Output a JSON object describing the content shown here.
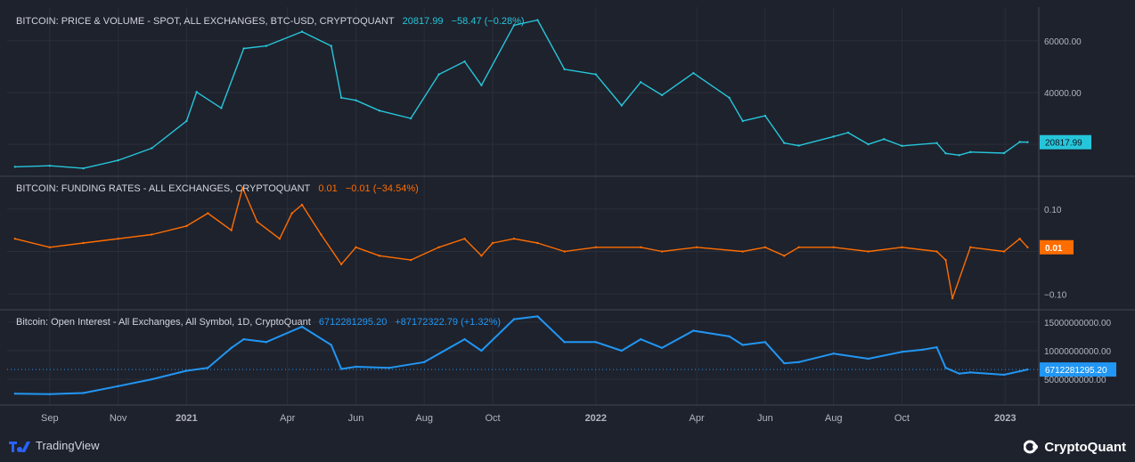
{
  "panels": [
    {
      "title": "BITCOIN: PRICE & VOLUME - SPOT, ALL EXCHANGES, BTC-USD, CRYPTOQUANT",
      "value": "20817.99",
      "change": "−58.47 (−0.28%)",
      "color": "#26c6da"
    },
    {
      "title": "BITCOIN: FUNDING RATES - ALL EXCHANGES, CRYPTOQUANT",
      "value": "0.01",
      "change": "−0.01 (−34.54%)",
      "color": "#ff6d00"
    },
    {
      "title": "Bitcoin: Open Interest - All Exchanges, All Symbol, 1D, CryptoQuant",
      "value": "6712281295.20",
      "change": "+87172322.79 (+1.32%)",
      "color": "#2196f3"
    }
  ],
  "footer": {
    "left_label": "TradingView",
    "right_label": "CryptoQuant"
  },
  "chart_data": [
    {
      "type": "line",
      "series": [
        {
          "name": "BITCOIN: PRICE & VOLUME - SPOT, ALL EXCHANGES, BTC-USD, CRYPTOQUANT",
          "color": "#26c6da"
        }
      ],
      "x": [
        "2020-08-01",
        "2020-09-01",
        "2020-10-01",
        "2020-11-01",
        "2020-12-01",
        "2021-01-01",
        "2021-01-10",
        "2021-02-01",
        "2021-02-21",
        "2021-03-13",
        "2021-04-14",
        "2021-05-10",
        "2021-05-19",
        "2021-06-01",
        "2021-06-22",
        "2021-07-20",
        "2021-08-14",
        "2021-09-06",
        "2021-09-21",
        "2021-10-20",
        "2021-11-10",
        "2021-12-04",
        "2022-01-01",
        "2022-01-24",
        "2022-02-10",
        "2022-03-01",
        "2022-03-29",
        "2022-04-30",
        "2022-05-12",
        "2022-06-01",
        "2022-06-18",
        "2022-07-01",
        "2022-08-01",
        "2022-08-14",
        "2022-09-01",
        "2022-09-15",
        "2022-10-01",
        "2022-11-01",
        "2022-11-09",
        "2022-11-21",
        "2022-12-01",
        "2022-12-31",
        "2023-01-14",
        "2023-01-21"
      ],
      "values": [
        11300,
        11700,
        10700,
        13800,
        18500,
        29000,
        40200,
        34000,
        57000,
        58000,
        63500,
        58000,
        38000,
        37000,
        33000,
        30000,
        47000,
        52000,
        42800,
        66000,
        68000,
        49000,
        47000,
        35000,
        44000,
        39000,
        47500,
        38000,
        29000,
        31000,
        20500,
        19500,
        23000,
        24500,
        20000,
        22000,
        19400,
        20500,
        16500,
        15800,
        17000,
        16600,
        20900,
        20818
      ],
      "ylim": [
        8000,
        73000
      ],
      "y_ticks": [
        {
          "v": 20000,
          "label": ""
        },
        {
          "v": 40000,
          "label": "40000.00"
        },
        {
          "v": 60000,
          "label": "60000.00"
        }
      ],
      "last_label": "20817.99"
    },
    {
      "type": "line",
      "series": [
        {
          "name": "BITCOIN: FUNDING RATES - ALL EXCHANGES, CRYPTOQUANT",
          "color": "#ff6d00"
        }
      ],
      "x": [
        "2020-08-01",
        "2020-09-01",
        "2020-10-01",
        "2020-11-01",
        "2020-12-01",
        "2021-01-01",
        "2021-01-20",
        "2021-02-10",
        "2021-02-20",
        "2021-03-05",
        "2021-03-25",
        "2021-04-05",
        "2021-04-14",
        "2021-05-01",
        "2021-05-19",
        "2021-06-01",
        "2021-06-22",
        "2021-07-20",
        "2021-08-14",
        "2021-09-06",
        "2021-09-21",
        "2021-10-01",
        "2021-10-20",
        "2021-11-10",
        "2021-12-04",
        "2022-01-01",
        "2022-02-10",
        "2022-03-01",
        "2022-04-01",
        "2022-05-12",
        "2022-06-01",
        "2022-06-18",
        "2022-07-01",
        "2022-08-01",
        "2022-09-01",
        "2022-10-01",
        "2022-11-01",
        "2022-11-09",
        "2022-11-15",
        "2022-12-01",
        "2022-12-31",
        "2023-01-14",
        "2023-01-21"
      ],
      "values": [
        0.03,
        0.01,
        0.02,
        0.03,
        0.04,
        0.06,
        0.09,
        0.05,
        0.15,
        0.07,
        0.03,
        0.09,
        0.11,
        0.04,
        -0.03,
        0.01,
        -0.01,
        -0.02,
        0.01,
        0.03,
        -0.01,
        0.02,
        0.03,
        0.02,
        0,
        0.01,
        0.01,
        0,
        0.01,
        0,
        0.01,
        -0.01,
        0.01,
        0.01,
        0,
        0.01,
        0,
        -0.02,
        -0.11,
        0.01,
        0,
        0.03,
        0.01
      ],
      "ylim": [
        -0.135,
        0.175
      ],
      "y_ticks": [
        {
          "v": -0.1,
          "label": "−0.10"
        },
        {
          "v": 0,
          "label": ""
        },
        {
          "v": 0.1,
          "label": "0.10"
        }
      ],
      "last_label": "0.01"
    },
    {
      "type": "line",
      "series": [
        {
          "name": "Bitcoin: Open Interest - All Exchanges, All Symbol, 1D, CryptoQuant",
          "color": "#2196f3"
        }
      ],
      "x": [
        "2020-08-01",
        "2020-09-01",
        "2020-10-01",
        "2020-11-01",
        "2020-12-01",
        "2021-01-01",
        "2021-01-20",
        "2021-02-10",
        "2021-02-21",
        "2021-03-13",
        "2021-04-14",
        "2021-05-10",
        "2021-05-19",
        "2021-06-01",
        "2021-07-01",
        "2021-08-01",
        "2021-09-06",
        "2021-09-21",
        "2021-10-20",
        "2021-11-10",
        "2021-12-04",
        "2022-01-01",
        "2022-01-24",
        "2022-02-10",
        "2022-03-01",
        "2022-03-29",
        "2022-04-30",
        "2022-05-12",
        "2022-06-01",
        "2022-06-18",
        "2022-07-01",
        "2022-08-01",
        "2022-09-01",
        "2022-10-01",
        "2022-10-20",
        "2022-11-01",
        "2022-11-09",
        "2022-11-21",
        "2022-12-01",
        "2022-12-31",
        "2023-01-14",
        "2023-01-21"
      ],
      "values": [
        2500000000,
        2400000000,
        2600000000,
        3800000000,
        5000000000,
        6500000000,
        7000000000,
        10500000000,
        12000000000,
        11500000000,
        14200000000,
        11000000000,
        6800000000,
        7200000000,
        7000000000,
        8000000000,
        12000000000,
        10000000000,
        15500000000,
        16000000000,
        11500000000,
        11500000000,
        10000000000,
        12000000000,
        10500000000,
        13500000000,
        12500000000,
        11000000000,
        11500000000,
        7800000000,
        8000000000,
        9500000000,
        8600000000,
        9800000000,
        10200000000,
        10600000000,
        7000000000,
        6000000000,
        6200000000,
        5800000000,
        6400000000,
        6712281295
      ],
      "ylim": [
        500000000,
        17000000000
      ],
      "y_ticks": [
        {
          "v": 5000000000,
          "label": "5000000000.00"
        },
        {
          "v": 10000000000,
          "label": "10000000000.00"
        },
        {
          "v": 15000000000,
          "label": "15000000000.00"
        }
      ],
      "last_label": "6712281295.20"
    }
  ],
  "x_axis": {
    "start": "2020-07-25",
    "end": "2023-01-31",
    "ticks": [
      {
        "date": "2020-09-01",
        "label": "Sep",
        "bold": false
      },
      {
        "date": "2020-11-01",
        "label": "Nov",
        "bold": false
      },
      {
        "date": "2021-01-01",
        "label": "2021",
        "bold": true
      },
      {
        "date": "2021-04-01",
        "label": "Apr",
        "bold": false
      },
      {
        "date": "2021-06-01",
        "label": "Jun",
        "bold": false
      },
      {
        "date": "2021-08-01",
        "label": "Aug",
        "bold": false
      },
      {
        "date": "2021-10-01",
        "label": "Oct",
        "bold": false
      },
      {
        "date": "2022-01-01",
        "label": "2022",
        "bold": true
      },
      {
        "date": "2022-04-01",
        "label": "Apr",
        "bold": false
      },
      {
        "date": "2022-06-01",
        "label": "Jun",
        "bold": false
      },
      {
        "date": "2022-08-01",
        "label": "Aug",
        "bold": false
      },
      {
        "date": "2022-10-01",
        "label": "Oct",
        "bold": false
      },
      {
        "date": "2023-01-01",
        "label": "2023",
        "bold": true
      }
    ]
  }
}
